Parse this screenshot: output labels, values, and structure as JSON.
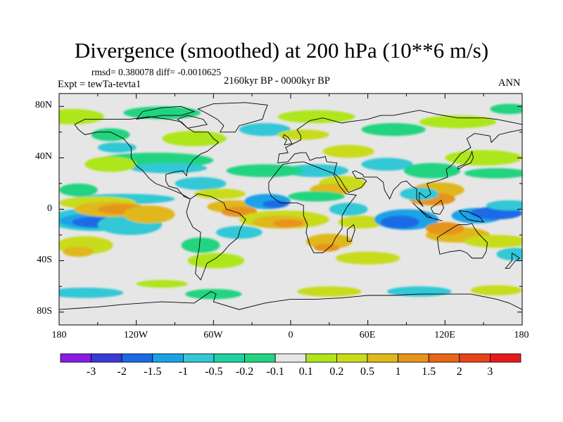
{
  "title": "Divergence (smoothed) at 200 hPa (10**6 m/s)",
  "stats": "rmsd= 0.380078 diff= -0.0010625",
  "period": "2160kyr BP - 0000kyr BP",
  "experiment": "Expt = tewTa-tevta1",
  "season": "ANN",
  "map": {
    "projection": "cylindrical equidistant",
    "lon_range": [
      -180,
      180
    ],
    "lat_range": [
      -90,
      90
    ],
    "lat_labels": [
      "80N",
      "40N",
      "0",
      "40S",
      "80S"
    ],
    "lon_labels": [
      "180",
      "120W",
      "60W",
      "0",
      "60E",
      "120E",
      "180"
    ]
  },
  "colorbar": {
    "labels": [
      "-3",
      "-2",
      "-1.5",
      "-1",
      "-0.5",
      "-0.2",
      "-0.1",
      "0.1",
      "0.2",
      "0.5",
      "1",
      "1.5",
      "2",
      "3"
    ],
    "colors": [
      "#8a1ae6",
      "#3a3ad6",
      "#1a6ae6",
      "#1aa2e6",
      "#33c8d6",
      "#20d2a0",
      "#22d480",
      "#e6e6e6",
      "#aee61a",
      "#c8dc1a",
      "#e0b81a",
      "#e6941a",
      "#e6661a",
      "#e6441a",
      "#e61a1a"
    ]
  },
  "colors": {
    "neutral": "#e6e6e6",
    "neg1": "#22d480",
    "neg2": "#33c8d6",
    "neg3": "#1aa2e6",
    "neg4": "#1a6ae6",
    "pos1": "#aee61a",
    "pos2": "#c8dc1a",
    "pos3": "#e0b81a",
    "pos4": "#e6941a"
  }
}
